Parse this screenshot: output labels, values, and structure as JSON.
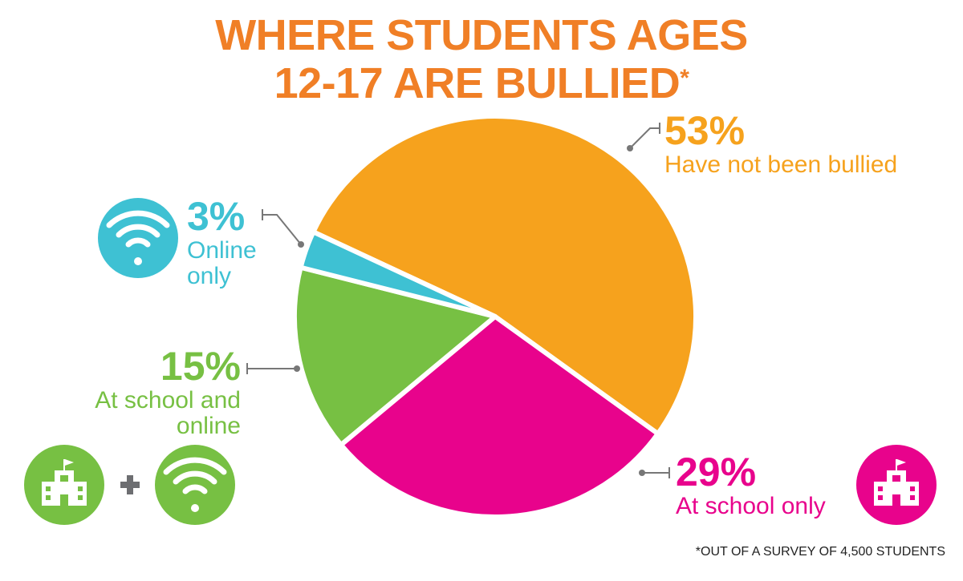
{
  "chart_data": {
    "type": "pie",
    "title": "WHERE STUDENTS AGES 12-17 ARE BULLIED",
    "title_mark": "*",
    "categories": [
      "Have not been bullied",
      "At school only",
      "At school and online",
      "Online only"
    ],
    "values": [
      53,
      29,
      15,
      3
    ],
    "value_labels": [
      "53%",
      "29%",
      "15%",
      "3%"
    ],
    "colors": [
      "#f6a21d",
      "#e8038c",
      "#77c043",
      "#3ec1d3"
    ],
    "footnote": "*OUT OF A SURVEY OF 4,500 STUDENTS"
  }
}
